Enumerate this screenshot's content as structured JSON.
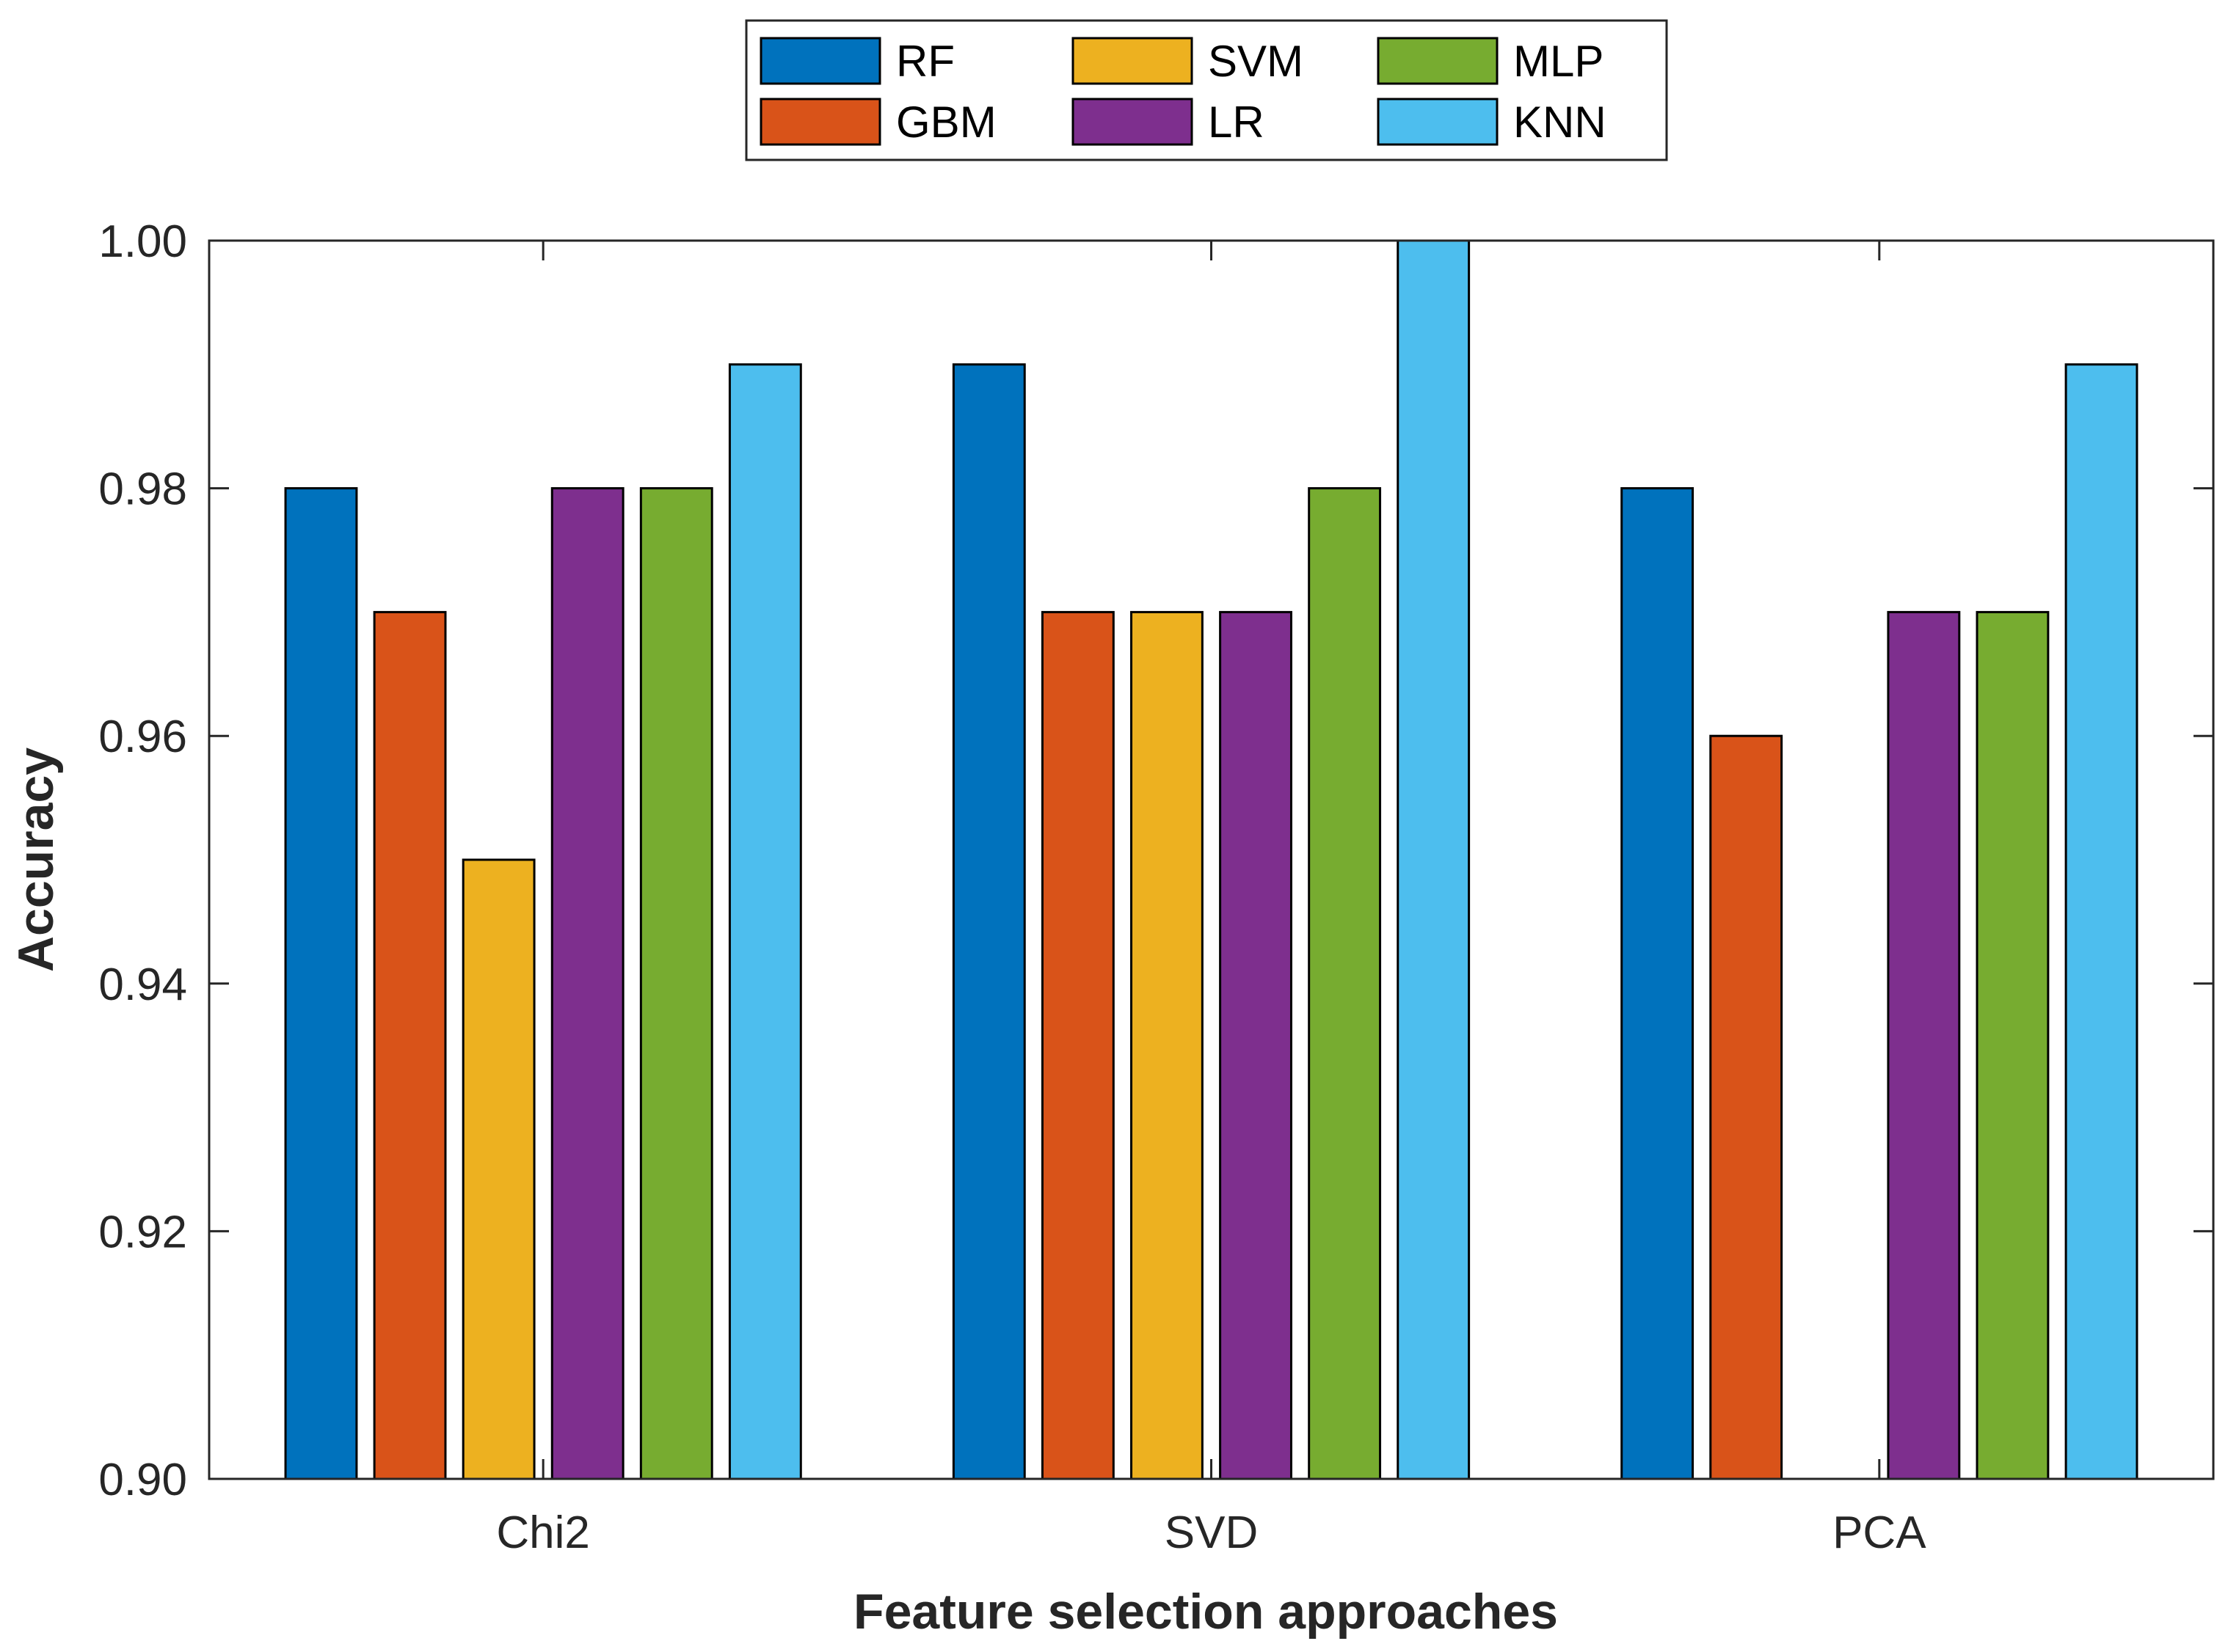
{
  "chart_data": {
    "type": "bar",
    "title": "",
    "xlabel": "Feature selection approaches",
    "ylabel": "Accuracy",
    "categories": [
      "Chi2",
      "SVD",
      "PCA"
    ],
    "ylim": [
      0.9,
      1.0
    ],
    "yticks": [
      "0.90",
      "0.92",
      "0.94",
      "0.96",
      "0.98",
      "1.00"
    ],
    "ytick_values": [
      0.9,
      0.92,
      0.94,
      0.96,
      0.98,
      1.0
    ],
    "grid": false,
    "legend_position": "top-center",
    "series": [
      {
        "name": "RF",
        "color": "#0072BD",
        "values": [
          0.98,
          0.99,
          0.98
        ]
      },
      {
        "name": "GBM",
        "color": "#D95319",
        "values": [
          0.97,
          0.97,
          0.96
        ]
      },
      {
        "name": "SVM",
        "color": "#EDB120",
        "values": [
          0.95,
          0.97,
          0.9
        ]
      },
      {
        "name": "LR",
        "color": "#7E2F8E",
        "values": [
          0.98,
          0.97,
          0.97
        ]
      },
      {
        "name": "MLP",
        "color": "#77AC30",
        "values": [
          0.98,
          0.98,
          0.97
        ]
      },
      {
        "name": "KNN",
        "color": "#4DBEEE",
        "values": [
          0.99,
          1.0,
          0.99
        ]
      }
    ]
  }
}
